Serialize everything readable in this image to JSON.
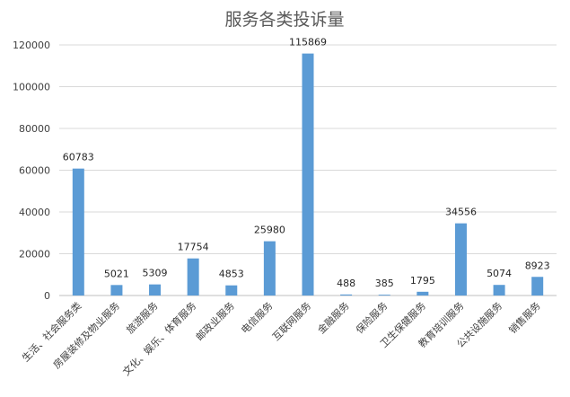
{
  "chart_data": {
    "type": "bar",
    "title": "服务各类投诉量",
    "categories": [
      "生活、社会服务类",
      "房屋装修及物业服务",
      "旅游服务",
      "文化、娱乐、体育服务",
      "邮政业服务",
      "电信服务",
      "互联网服务",
      "金融服务",
      "保险服务",
      "卫生保健服务",
      "教育培训服务",
      "公共设施服务",
      "销售服务"
    ],
    "values": [
      60783,
      5021,
      5309,
      17754,
      4853,
      25980,
      115869,
      488,
      385,
      1795,
      34556,
      5074,
      8923
    ],
    "ylim": [
      0,
      120000
    ],
    "yticks": [
      0,
      20000,
      40000,
      60000,
      80000,
      100000,
      120000
    ],
    "grid": true,
    "bar_color": "#5b9bd5",
    "xlabel": "",
    "ylabel": ""
  }
}
